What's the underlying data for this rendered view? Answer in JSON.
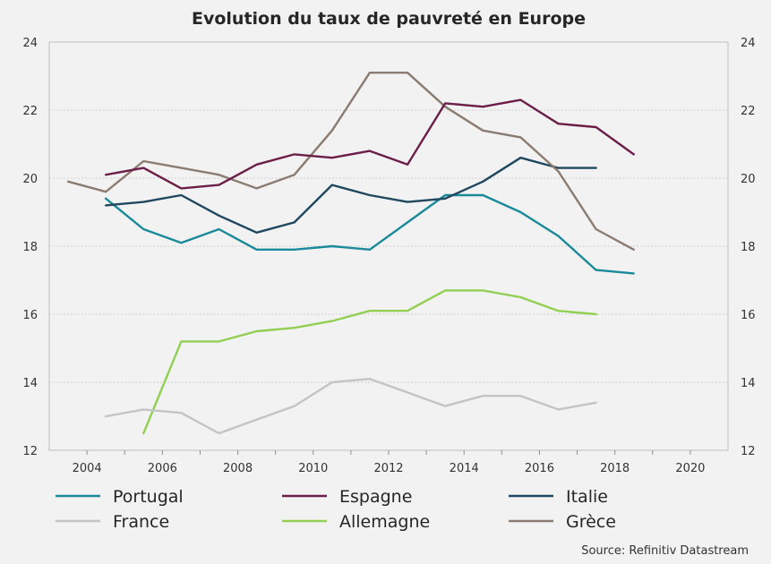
{
  "chart_data": {
    "type": "line",
    "title": "Evolution du taux de pauvreté en Europe",
    "xlabel": "",
    "ylabel": "",
    "xlim": [
      2003,
      2021
    ],
    "ylim": [
      12,
      24
    ],
    "x_ticks": [
      "2004",
      "2006",
      "2008",
      "2010",
      "2012",
      "2014",
      "2016",
      "2018",
      "2020"
    ],
    "y_ticks": [
      "12",
      "14",
      "16",
      "18",
      "20",
      "22",
      "24"
    ],
    "grid": "horizontal-dotted",
    "legend_position": "bottom",
    "source": "Source: Refinitiv Datastream",
    "series": [
      {
        "name": "Portugal",
        "color": "#1a8a9a",
        "x": [
          2004.5,
          2005.5,
          2006.5,
          2007.5,
          2008.5,
          2009.5,
          2010.5,
          2011.5,
          2012.5,
          2013.5,
          2014.5,
          2015.5,
          2016.5,
          2017.5,
          2018.5
        ],
        "values": [
          19.4,
          18.5,
          18.1,
          18.5,
          17.9,
          17.9,
          18.0,
          17.9,
          18.7,
          19.5,
          19.5,
          19.0,
          18.3,
          17.3,
          17.2
        ]
      },
      {
        "name": "Espagne",
        "color": "#6b1f48",
        "x": [
          2004.5,
          2005.5,
          2006.5,
          2007.5,
          2008.5,
          2009.5,
          2010.5,
          2011.5,
          2012.5,
          2013.5,
          2014.5,
          2015.5,
          2016.5,
          2017.5,
          2018.5
        ],
        "values": [
          20.1,
          20.3,
          19.7,
          19.8,
          20.4,
          20.7,
          20.6,
          20.8,
          20.4,
          22.2,
          22.1,
          22.3,
          21.6,
          21.5,
          20.7
        ]
      },
      {
        "name": "Italie",
        "color": "#1f4860",
        "x": [
          2004.5,
          2005.5,
          2006.5,
          2007.5,
          2008.5,
          2009.5,
          2010.5,
          2011.5,
          2012.5,
          2013.5,
          2014.5,
          2015.5,
          2016.5,
          2017.5
        ],
        "values": [
          19.2,
          19.3,
          19.5,
          18.9,
          18.4,
          18.7,
          19.8,
          19.5,
          19.3,
          19.4,
          19.9,
          20.6,
          20.3,
          20.3
        ]
      },
      {
        "name": "France",
        "color": "#c4c4c4",
        "x": [
          2004.5,
          2005.5,
          2006.5,
          2007.5,
          2008.5,
          2009.5,
          2010.5,
          2011.5,
          2012.5,
          2013.5,
          2014.5,
          2015.5,
          2016.5,
          2017.5
        ],
        "values": [
          13.0,
          13.2,
          13.1,
          12.5,
          12.9,
          13.3,
          14.0,
          14.1,
          13.7,
          13.3,
          13.6,
          13.6,
          13.2,
          13.4
        ]
      },
      {
        "name": "Allemagne",
        "color": "#92cf52",
        "x": [
          2005.5,
          2006.5,
          2007.5,
          2008.5,
          2009.5,
          2010.5,
          2011.5,
          2012.5,
          2013.5,
          2014.5,
          2015.5,
          2016.5,
          2017.5
        ],
        "values": [
          12.5,
          15.2,
          15.2,
          15.5,
          15.6,
          15.8,
          16.1,
          16.1,
          16.7,
          16.7,
          16.5,
          16.1,
          16.0
        ]
      },
      {
        "name": "Grèce",
        "color": "#8c7b70",
        "x": [
          2003.5,
          2004.5,
          2005.5,
          2006.5,
          2007.5,
          2008.5,
          2009.5,
          2010.5,
          2011.5,
          2012.5,
          2013.5,
          2014.5,
          2015.5,
          2016.5,
          2017.5,
          2018.5
        ],
        "values": [
          19.9,
          19.6,
          20.5,
          20.3,
          20.1,
          19.7,
          20.1,
          21.4,
          23.1,
          23.1,
          22.1,
          21.4,
          21.2,
          20.2,
          18.5,
          17.9
        ]
      }
    ]
  }
}
